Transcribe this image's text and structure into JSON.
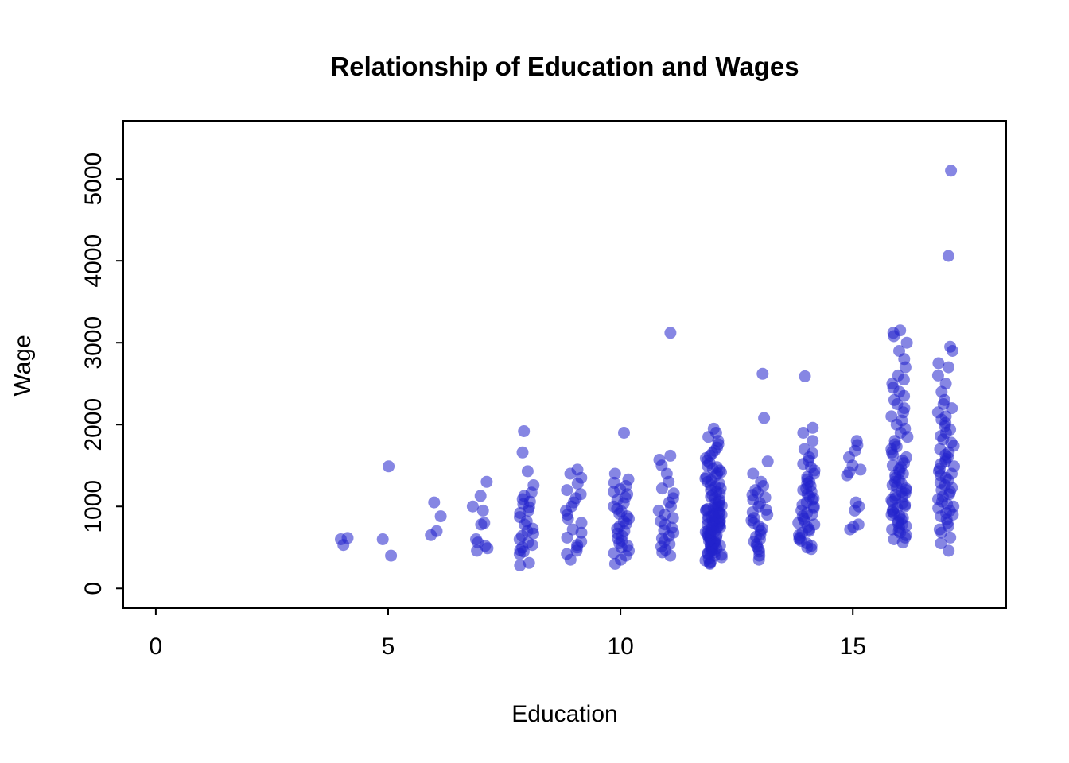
{
  "chart_data": {
    "type": "scatter",
    "title": "Relationship of Education and Wages",
    "xlabel": "Education",
    "ylabel": "Wage",
    "x_ticks": [
      0,
      5,
      10,
      15
    ],
    "y_ticks": [
      0,
      1000,
      2000,
      3000,
      4000,
      5000
    ],
    "xlim": [
      -0.7,
      18.3
    ],
    "ylim": [
      -240,
      5710
    ],
    "grid": "off",
    "legend": "none",
    "point_color": "#2222CC",
    "point_opacity": 0.55,
    "point_radius": 7.5,
    "x_jitter": 0.18,
    "series": [
      {
        "education": 4,
        "wages": [
          530,
          600,
          615
        ]
      },
      {
        "education": 5,
        "wages": [
          400,
          600,
          1490
        ]
      },
      {
        "education": 6,
        "wages": [
          650,
          700,
          880,
          1050
        ]
      },
      {
        "education": 7,
        "wages": [
          460,
          490,
          520,
          560,
          600,
          780,
          800,
          950,
          1000,
          1130,
          1300
        ]
      },
      {
        "education": 8,
        "wages": [
          280,
          310,
          420,
          450,
          470,
          500,
          530,
          560,
          600,
          640,
          670,
          700,
          730,
          780,
          820,
          870,
          920,
          950,
          990,
          1030,
          1060,
          1090,
          1130,
          1170,
          1260,
          1430,
          1660,
          1920
        ]
      },
      {
        "education": 9,
        "wages": [
          350,
          420,
          460,
          500,
          530,
          570,
          620,
          680,
          720,
          800,
          850,
          900,
          950,
          1000,
          1050,
          1100,
          1150,
          1200,
          1280,
          1350,
          1400,
          1450
        ]
      },
      {
        "education": 10,
        "wages": [
          300,
          350,
          400,
          430,
          460,
          500,
          520,
          550,
          580,
          610,
          640,
          670,
          700,
          730,
          760,
          790,
          820,
          850,
          880,
          910,
          940,
          970,
          1000,
          1040,
          1080,
          1110,
          1150,
          1180,
          1210,
          1250,
          1290,
          1330,
          1400,
          1900
        ]
      },
      {
        "education": 11,
        "wages": [
          400,
          440,
          470,
          510,
          540,
          570,
          610,
          640,
          680,
          710,
          740,
          780,
          820,
          860,
          900,
          950,
          1000,
          1050,
          1100,
          1160,
          1220,
          1300,
          1400,
          1500,
          1570,
          1620,
          3120
        ]
      },
      {
        "education": 12,
        "wages": [
          300,
          310,
          320,
          340,
          360,
          380,
          400,
          410,
          420,
          430,
          440,
          450,
          460,
          470,
          480,
          490,
          500,
          510,
          520,
          530,
          540,
          550,
          560,
          570,
          580,
          590,
          600,
          610,
          620,
          630,
          640,
          650,
          660,
          670,
          680,
          690,
          700,
          710,
          720,
          730,
          740,
          750,
          760,
          770,
          780,
          790,
          800,
          810,
          820,
          830,
          840,
          850,
          860,
          870,
          880,
          890,
          900,
          910,
          920,
          930,
          940,
          950,
          960,
          970,
          980,
          990,
          1000,
          1010,
          1020,
          1040,
          1060,
          1080,
          1100,
          1120,
          1140,
          1160,
          1180,
          1200,
          1220,
          1240,
          1260,
          1280,
          1300,
          1320,
          1340,
          1360,
          1380,
          1400,
          1420,
          1440,
          1460,
          1480,
          1500,
          1530,
          1560,
          1590,
          1620,
          1650,
          1680,
          1720,
          1760,
          1800,
          1850,
          1900,
          1950
        ]
      },
      {
        "education": 13,
        "wages": [
          350,
          400,
          450,
          480,
          510,
          540,
          570,
          600,
          630,
          660,
          700,
          730,
          760,
          800,
          830,
          860,
          900,
          930,
          960,
          1000,
          1040,
          1080,
          1110,
          1140,
          1170,
          1200,
          1250,
          1300,
          1400,
          1550,
          2080,
          2620
        ]
      },
      {
        "education": 14,
        "wages": [
          480,
          500,
          520,
          550,
          580,
          600,
          620,
          650,
          680,
          700,
          720,
          750,
          780,
          800,
          820,
          850,
          880,
          900,
          920,
          950,
          980,
          1000,
          1020,
          1050,
          1080,
          1100,
          1120,
          1150,
          1180,
          1200,
          1220,
          1250,
          1280,
          1300,
          1330,
          1360,
          1400,
          1440,
          1480,
          1520,
          1560,
          1600,
          1650,
          1700,
          1800,
          1900,
          1960,
          2590
        ]
      },
      {
        "education": 15,
        "wages": [
          720,
          750,
          780,
          950,
          1000,
          1050,
          1380,
          1420,
          1450,
          1500,
          1600,
          1680,
          1750,
          1800
        ]
      },
      {
        "education": 16,
        "wages": [
          560,
          600,
          620,
          650,
          680,
          700,
          720,
          740,
          760,
          780,
          800,
          820,
          840,
          860,
          880,
          900,
          920,
          940,
          960,
          980,
          1000,
          1020,
          1040,
          1060,
          1080,
          1100,
          1120,
          1140,
          1160,
          1180,
          1200,
          1220,
          1240,
          1260,
          1280,
          1300,
          1320,
          1350,
          1380,
          1400,
          1420,
          1450,
          1480,
          1500,
          1530,
          1560,
          1600,
          1630,
          1660,
          1700,
          1730,
          1760,
          1800,
          1850,
          1900,
          1950,
          2000,
          2050,
          2100,
          2150,
          2200,
          2250,
          2300,
          2350,
          2400,
          2450,
          2500,
          2550,
          2600,
          2700,
          2800,
          2900,
          3000,
          3080,
          3120,
          3150
        ]
      },
      {
        "education": 17,
        "wages": [
          460,
          550,
          620,
          680,
          720,
          760,
          800,
          840,
          880,
          900,
          920,
          950,
          980,
          1000,
          1030,
          1060,
          1090,
          1120,
          1150,
          1180,
          1200,
          1230,
          1260,
          1290,
          1320,
          1350,
          1380,
          1400,
          1430,
          1460,
          1490,
          1520,
          1550,
          1580,
          1600,
          1630,
          1660,
          1700,
          1740,
          1780,
          1820,
          1860,
          1900,
          1940,
          1980,
          2020,
          2060,
          2100,
          2150,
          2200,
          2250,
          2300,
          2400,
          2500,
          2600,
          2700,
          2750,
          2900,
          2950,
          4060,
          5100
        ]
      }
    ]
  }
}
